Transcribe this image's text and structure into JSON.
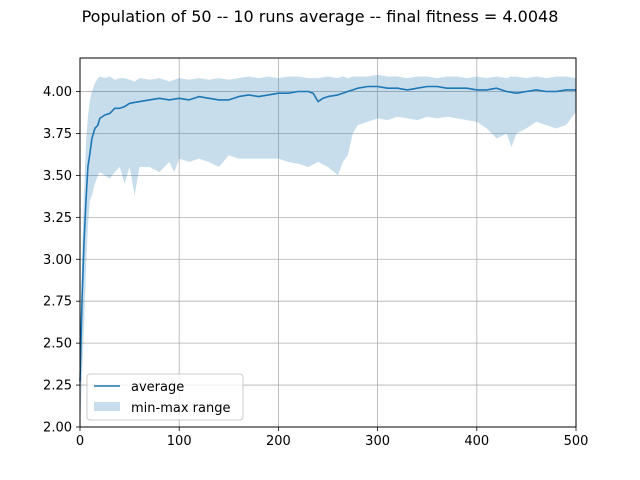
{
  "chart_data": {
    "type": "line",
    "title": "Population of 50 -- 10 runs average -- final fitness = 4.0048",
    "xlabel": "",
    "ylabel": "",
    "xlim": [
      0,
      500
    ],
    "ylim": [
      2.0,
      4.2
    ],
    "x_ticks": [
      0,
      100,
      200,
      300,
      400,
      500
    ],
    "x_tick_labels": [
      "0",
      "100",
      "200",
      "300",
      "400",
      "500"
    ],
    "y_ticks": [
      2.0,
      2.25,
      2.5,
      2.75,
      3.0,
      3.25,
      3.5,
      3.75,
      4.0
    ],
    "y_tick_labels": [
      "2.00",
      "2.25",
      "2.50",
      "2.75",
      "3.00",
      "3.25",
      "3.50",
      "3.75",
      "4.00"
    ],
    "grid": true,
    "legend_position": "lower-left",
    "series": [
      {
        "name": "average",
        "kind": "line",
        "color": "#1f77b4",
        "x": [
          0,
          2,
          4,
          6,
          8,
          10,
          12,
          15,
          18,
          20,
          25,
          30,
          35,
          40,
          45,
          50,
          60,
          70,
          80,
          90,
          100,
          110,
          120,
          130,
          140,
          150,
          160,
          170,
          180,
          190,
          200,
          210,
          220,
          230,
          235,
          240,
          245,
          250,
          260,
          270,
          280,
          290,
          300,
          310,
          320,
          330,
          340,
          350,
          360,
          370,
          380,
          390,
          400,
          410,
          420,
          430,
          440,
          450,
          460,
          470,
          480,
          490,
          500
        ],
        "values": [
          2.27,
          2.75,
          3.1,
          3.35,
          3.55,
          3.63,
          3.72,
          3.78,
          3.8,
          3.84,
          3.86,
          3.87,
          3.9,
          3.9,
          3.91,
          3.93,
          3.94,
          3.95,
          3.96,
          3.95,
          3.96,
          3.95,
          3.97,
          3.96,
          3.95,
          3.95,
          3.97,
          3.98,
          3.97,
          3.98,
          3.99,
          3.99,
          4.0,
          4.0,
          3.99,
          3.94,
          3.96,
          3.97,
          3.98,
          4.0,
          4.02,
          4.03,
          4.03,
          4.02,
          4.02,
          4.01,
          4.02,
          4.03,
          4.03,
          4.02,
          4.02,
          4.02,
          4.01,
          4.01,
          4.02,
          4.0,
          3.99,
          4.0,
          4.01,
          4.0,
          4.0,
          4.01,
          4.01
        ]
      },
      {
        "name": "min-max range",
        "kind": "band",
        "color": "#1f77b4",
        "opacity": 0.25,
        "x": [
          0,
          2,
          4,
          6,
          8,
          10,
          12,
          15,
          18,
          20,
          25,
          30,
          35,
          40,
          45,
          50,
          55,
          60,
          70,
          80,
          90,
          95,
          100,
          110,
          120,
          130,
          140,
          150,
          160,
          170,
          180,
          190,
          200,
          210,
          220,
          230,
          240,
          250,
          260,
          265,
          270,
          275,
          280,
          290,
          300,
          310,
          320,
          330,
          340,
          350,
          360,
          370,
          380,
          390,
          400,
          410,
          420,
          430,
          435,
          440,
          450,
          460,
          470,
          480,
          490,
          500
        ],
        "lower": [
          2.0,
          2.3,
          2.6,
          2.95,
          3.2,
          3.35,
          3.38,
          3.45,
          3.5,
          3.52,
          3.5,
          3.48,
          3.52,
          3.55,
          3.45,
          3.55,
          3.38,
          3.55,
          3.55,
          3.52,
          3.58,
          3.52,
          3.6,
          3.58,
          3.6,
          3.58,
          3.55,
          3.62,
          3.6,
          3.6,
          3.6,
          3.6,
          3.6,
          3.58,
          3.57,
          3.55,
          3.58,
          3.55,
          3.5,
          3.58,
          3.62,
          3.75,
          3.8,
          3.82,
          3.84,
          3.83,
          3.85,
          3.84,
          3.83,
          3.85,
          3.84,
          3.85,
          3.84,
          3.83,
          3.82,
          3.78,
          3.72,
          3.75,
          3.67,
          3.75,
          3.78,
          3.82,
          3.8,
          3.78,
          3.8,
          3.88
        ],
        "upper": [
          2.5,
          3.0,
          3.4,
          3.7,
          3.85,
          3.95,
          4.0,
          4.05,
          4.08,
          4.09,
          4.08,
          4.09,
          4.07,
          4.08,
          4.08,
          4.07,
          4.06,
          4.08,
          4.07,
          4.08,
          4.06,
          4.07,
          4.08,
          4.07,
          4.08,
          4.07,
          4.08,
          4.07,
          4.08,
          4.09,
          4.08,
          4.09,
          4.08,
          4.09,
          4.09,
          4.08,
          4.08,
          4.09,
          4.08,
          4.09,
          4.08,
          4.09,
          4.09,
          4.09,
          4.1,
          4.09,
          4.09,
          4.08,
          4.09,
          4.09,
          4.08,
          4.09,
          4.09,
          4.08,
          4.09,
          4.08,
          4.09,
          4.08,
          4.09,
          4.09,
          4.08,
          4.09,
          4.08,
          4.09,
          4.09,
          4.08
        ]
      }
    ]
  }
}
